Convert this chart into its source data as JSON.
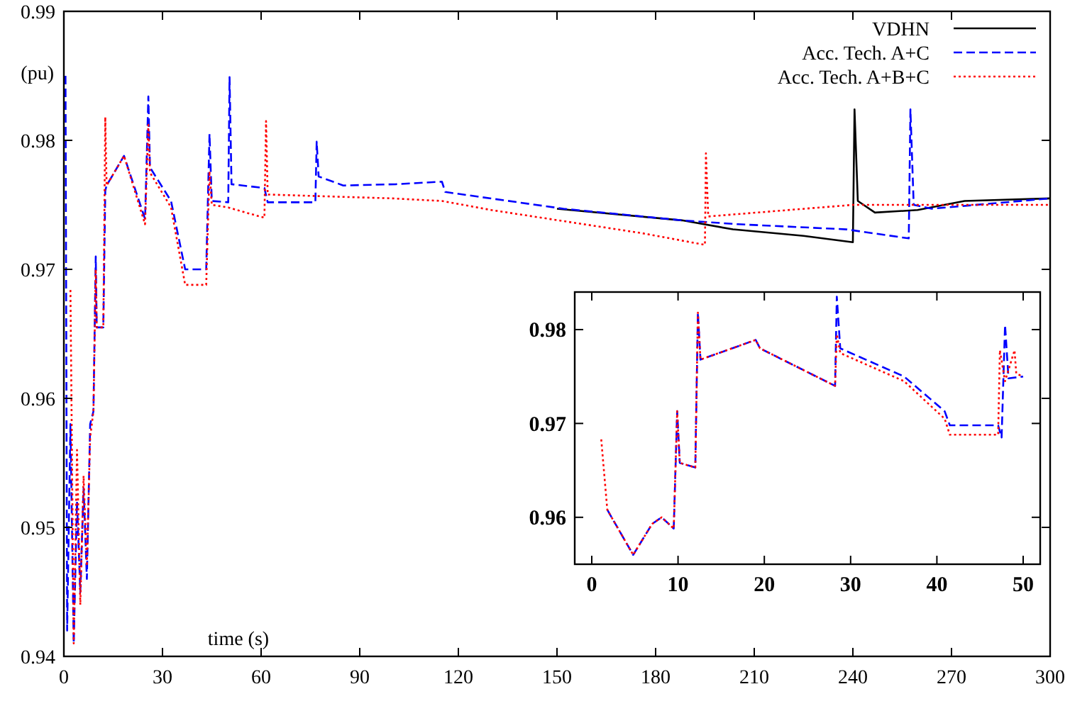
{
  "chart_data": [
    {
      "type": "line",
      "xlabel": "time (s)",
      "ylabel": "(pu)",
      "xlim": [
        0,
        300
      ],
      "ylim": [
        0.94,
        0.99
      ],
      "xticks": [
        0,
        30,
        60,
        90,
        120,
        150,
        180,
        210,
        240,
        270,
        300
      ],
      "yticks": [
        0.94,
        0.95,
        0.96,
        0.97,
        0.98,
        0.99
      ],
      "legend": "top right",
      "series": [
        {
          "name": "VDHN",
          "color": "#000000",
          "line_style": "solid",
          "x": [
            150,
            188,
            203.5,
            225,
            240,
            240.5,
            241.5,
            246.7,
            259.7,
            274,
            300
          ],
          "values": [
            0.9747,
            0.9738,
            0.9731,
            0.9726,
            0.9721,
            0.9824,
            0.9753,
            0.9744,
            0.9746,
            0.9753,
            0.9755
          ]
        },
        {
          "name": "Acc. Tech. A+C",
          "color": "#0000ff",
          "line_style": "dashed",
          "x": [
            0.5,
            1,
            2,
            3,
            4,
            5,
            6,
            7,
            8,
            9,
            9.7,
            10,
            12,
            12.6,
            13,
            18.3,
            24.7,
            25.7,
            26.2,
            32.6,
            36.9,
            43.3,
            44.3,
            45,
            50,
            50.4,
            51,
            61,
            62,
            76.5,
            76.9,
            77.5,
            85,
            101,
            115,
            116,
            127,
            152,
            188,
            205,
            238,
            257,
            257.5,
            258.5,
            264,
            300
          ],
          "values": [
            0.985,
            0.942,
            0.958,
            0.941,
            0.952,
            0.945,
            0.953,
            0.946,
            0.958,
            0.959,
            0.971,
            0.9655,
            0.9655,
            0.9761,
            0.9765,
            0.9788,
            0.9739,
            0.9834,
            0.9779,
            0.9753,
            0.97,
            0.97,
            0.9805,
            0.9753,
            0.9752,
            0.9849,
            0.9766,
            0.9763,
            0.9752,
            0.9752,
            0.9799,
            0.9772,
            0.9765,
            0.9766,
            0.9768,
            0.976,
            0.9756,
            0.9747,
            0.9738,
            0.9735,
            0.9731,
            0.9724,
            0.9824,
            0.975,
            0.9747,
            0.9755
          ]
        },
        {
          "name": "Acc. Tech. A+B+C",
          "color": "#ff0000",
          "line_style": "dotted",
          "x": [
            2,
            3,
            4,
            5,
            6,
            7,
            8,
            9,
            9.7,
            10,
            12,
            12.6,
            13,
            18.3,
            24.7,
            25.7,
            26.2,
            32.6,
            36.9,
            43.3,
            44.3,
            45,
            50,
            54,
            61,
            61.5,
            62,
            100,
            115,
            130,
            153,
            176,
            195,
            195.3,
            196,
            240,
            300
          ],
          "values": [
            0.9684,
            0.941,
            0.956,
            0.944,
            0.954,
            0.947,
            0.957,
            0.959,
            0.97,
            0.9655,
            0.9655,
            0.9818,
            0.9765,
            0.9788,
            0.9735,
            0.9812,
            0.9775,
            0.9748,
            0.9688,
            0.9688,
            0.9776,
            0.975,
            0.9748,
            0.9745,
            0.974,
            0.9815,
            0.9758,
            0.9755,
            0.9753,
            0.9746,
            0.9737,
            0.9728,
            0.9719,
            0.979,
            0.9741,
            0.975,
            0.975
          ]
        }
      ]
    },
    {
      "type": "line",
      "xlim": [
        0,
        50
      ],
      "ylim": [
        0.955,
        0.984
      ],
      "xticks": [
        0,
        10,
        20,
        30,
        40,
        50
      ],
      "yticks": [
        0.96,
        0.97,
        0.98
      ],
      "series": [
        {
          "color": "#0000ff",
          "line_style": "dashed",
          "x": [
            1.8,
            4.8,
            7,
            8.1,
            9.5,
            9.9,
            10.2,
            12,
            12.3,
            12.6,
            19,
            19.5,
            28.2,
            28.4,
            28.8,
            36.2,
            40.9,
            41.5,
            47.1,
            47.5,
            47.9,
            48.3,
            50
          ],
          "values": [
            0.9608,
            0.956,
            0.9593,
            0.96,
            0.9588,
            0.9713,
            0.9658,
            0.9653,
            0.9818,
            0.9768,
            0.9789,
            0.978,
            0.974,
            0.9835,
            0.978,
            0.975,
            0.9713,
            0.9698,
            0.9698,
            0.9685,
            0.9805,
            0.9748,
            0.975
          ]
        },
        {
          "color": "#ff0000",
          "line_style": "dotted",
          "x": [
            1.1,
            1.8,
            4.8,
            7,
            8.1,
            9.5,
            9.9,
            10.2,
            12,
            12.3,
            12.6,
            19,
            19.5,
            28.2,
            28.4,
            28.8,
            36.2,
            40.9,
            41.5,
            47.1,
            47.3,
            47.9,
            49,
            49.2,
            50
          ],
          "values": [
            0.9683,
            0.9608,
            0.956,
            0.9593,
            0.96,
            0.9588,
            0.9713,
            0.9658,
            0.9653,
            0.9818,
            0.9768,
            0.9789,
            0.978,
            0.974,
            0.9795,
            0.9775,
            0.9745,
            0.9705,
            0.9688,
            0.9688,
            0.9778,
            0.9745,
            0.9778,
            0.9753,
            0.975
          ]
        }
      ]
    }
  ]
}
